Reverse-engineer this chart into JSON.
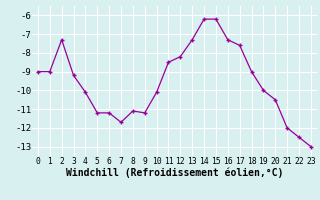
{
  "x": [
    0,
    1,
    2,
    3,
    4,
    5,
    6,
    7,
    8,
    9,
    10,
    11,
    12,
    13,
    14,
    15,
    16,
    17,
    18,
    19,
    20,
    21,
    22,
    23
  ],
  "y": [
    -9.0,
    -9.0,
    -7.3,
    -9.2,
    -10.1,
    -11.2,
    -11.2,
    -11.7,
    -11.1,
    -11.2,
    -10.1,
    -8.5,
    -8.2,
    -7.3,
    -6.2,
    -6.2,
    -7.3,
    -7.6,
    -9.0,
    -10.0,
    -10.5,
    -12.0,
    -12.5,
    -13.0
  ],
  "xlabel": "Windchill (Refroidissement éolien,°C)",
  "ylim": [
    -13.5,
    -5.5
  ],
  "yticks": [
    -13,
    -12,
    -11,
    -10,
    -9,
    -8,
    -7,
    -6
  ],
  "xtick_labels": [
    "0",
    "1",
    "2",
    "3",
    "4",
    "5",
    "6",
    "7",
    "8",
    "9",
    "10",
    "11",
    "12",
    "13",
    "14",
    "15",
    "16",
    "17",
    "18",
    "19",
    "20",
    "21",
    "22",
    "23"
  ],
  "line_color": "#990099",
  "marker": "+",
  "bg_color": "#d8f0f0",
  "grid_color": "#ffffff",
  "xlabel_fontsize": 7.0,
  "tick_fontsize": 5.8,
  "ytick_fontsize": 6.5
}
